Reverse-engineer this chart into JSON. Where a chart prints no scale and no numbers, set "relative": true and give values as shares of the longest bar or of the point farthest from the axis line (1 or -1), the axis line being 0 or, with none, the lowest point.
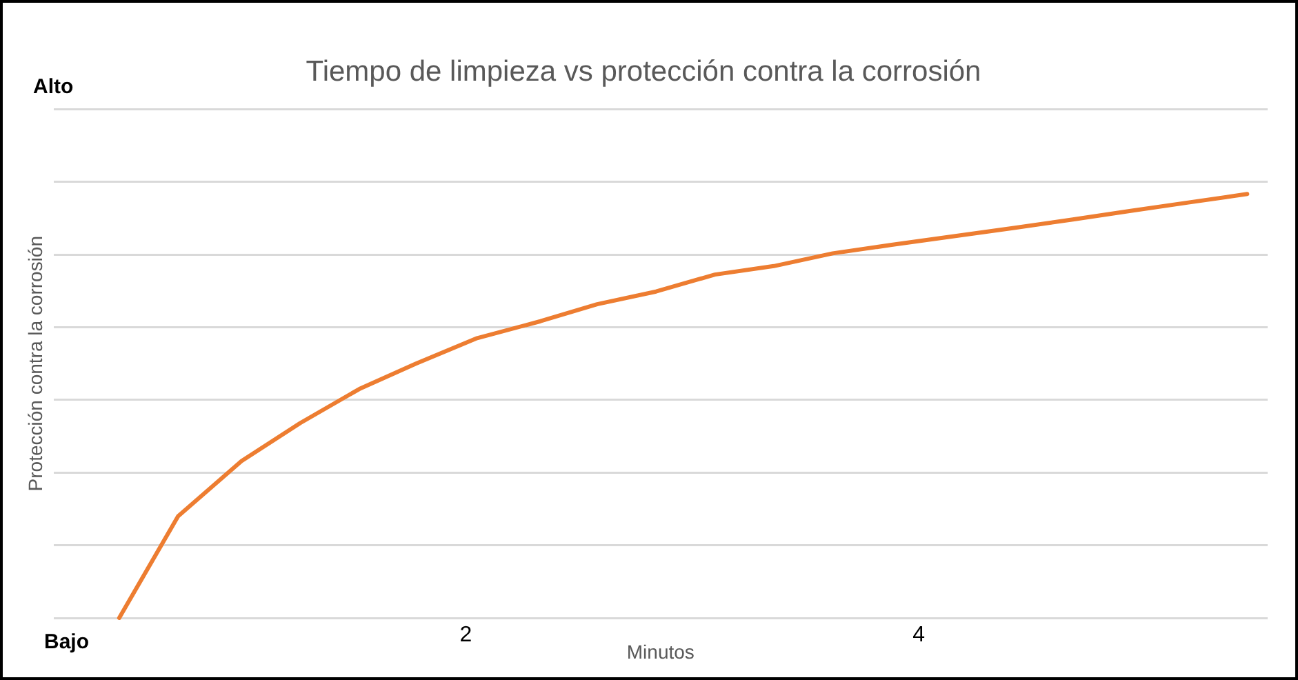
{
  "chart_data": {
    "type": "line",
    "title": "Tiempo de limpieza vs protección contra la corrosión",
    "xlabel": "Minutos",
    "ylabel": "Protección contra la corrosión",
    "x": [
      0.47,
      0.73,
      1.01,
      1.27,
      1.53,
      1.78,
      2.05,
      2.33,
      2.58,
      2.84,
      3.1,
      3.36,
      3.62,
      3.88,
      4.15,
      4.42,
      4.68,
      4.93,
      5.19,
      5.45
    ],
    "series": [
      {
        "color": "#ed7d31",
        "values": [
          0,
          0.24,
          0.37,
          0.46,
          0.54,
          0.6,
          0.66,
          0.7,
          0.74,
          0.77,
          0.81,
          0.83,
          0.86,
          0.88,
          0.9,
          0.92,
          0.94,
          0.96,
          0.98,
          1
        ]
      }
    ],
    "xlim": [
      0.18,
      5.54
    ],
    "xticks": [
      2,
      4
    ],
    "relative": true,
    "annotations": [
      "Alto",
      "Bajo"
    ],
    "grid": "y",
    "legend": false,
    "marker": "none",
    "line_style": "solid"
  }
}
